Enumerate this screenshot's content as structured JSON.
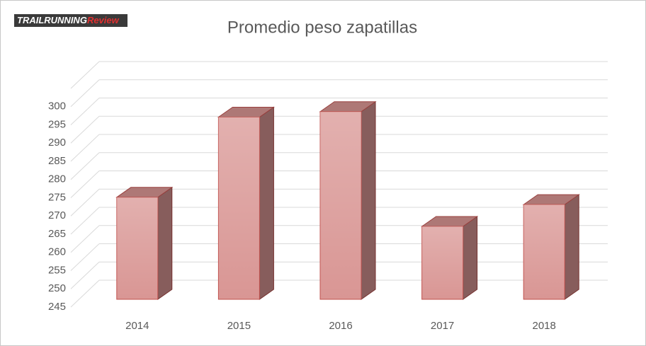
{
  "logo": {
    "text": "TRAILRUNNING",
    "highlight": "Review"
  },
  "chart_data": {
    "type": "bar3d",
    "title": "Promedio  peso  zapatillas",
    "categories": [
      "2014",
      "2015",
      "2016",
      "2017",
      "2018"
    ],
    "values": [
      273,
      295,
      296.5,
      265,
      271
    ],
    "color": "#d99694",
    "edge_color": "#c0504d",
    "ylim": [
      245,
      305
    ],
    "yticks": [
      245,
      250,
      255,
      260,
      265,
      270,
      275,
      280,
      285,
      290,
      295,
      300
    ],
    "grid": true
  }
}
